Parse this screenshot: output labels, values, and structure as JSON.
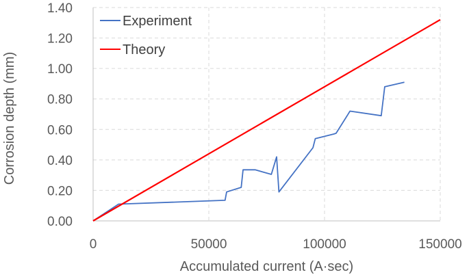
{
  "chart_data": {
    "type": "line",
    "title": "",
    "xlabel": "Accumulated current (A·sec)",
    "ylabel": "Corrosion depth (mm)",
    "xlim": [
      0,
      150000
    ],
    "ylim": [
      0,
      1.4
    ],
    "xticks": [
      0,
      50000,
      100000,
      150000
    ],
    "xtick_labels": [
      "0",
      "50000",
      "100000",
      "150000"
    ],
    "yticks": [
      0,
      0.2,
      0.4,
      0.6,
      0.8,
      1.0,
      1.2,
      1.4
    ],
    "ytick_labels": [
      "0.00",
      "0.20",
      "0.40",
      "0.60",
      "0.80",
      "1.00",
      "1.20",
      "1.40"
    ],
    "grid": true,
    "legend_position": "top-left",
    "series": [
      {
        "name": "Experiment",
        "color": "#4472c4",
        "x": [
          0,
          11000,
          57000,
          57700,
          64000,
          64800,
          70000,
          77000,
          79300,
          80300,
          95000,
          96000,
          104000,
          105000,
          111000,
          124500,
          126000,
          134500
        ],
        "y": [
          0,
          0.11,
          0.135,
          0.19,
          0.22,
          0.335,
          0.335,
          0.305,
          0.42,
          0.19,
          0.48,
          0.54,
          0.57,
          0.575,
          0.72,
          0.69,
          0.88,
          0.91
        ]
      },
      {
        "name": "Theory",
        "color": "#ff0000",
        "x": [
          0,
          150000
        ],
        "y": [
          0,
          1.32
        ]
      }
    ]
  }
}
